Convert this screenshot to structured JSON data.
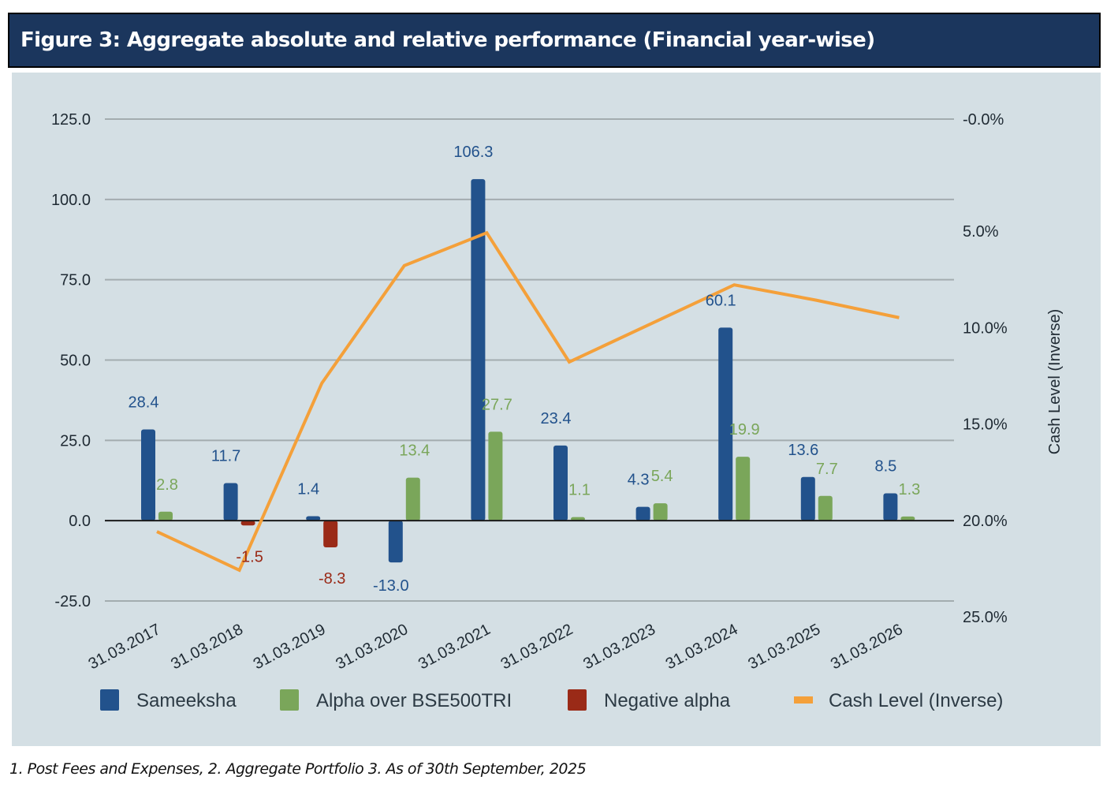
{
  "header": {
    "title": "Figure 3:  Aggregate absolute and relative performance (Financial year-wise)"
  },
  "footnote": "1. Post Fees and Expenses, 2. Aggregate Portfolio  3. As of 30th September, 2025",
  "colors": {
    "title_bg": "#1b365d",
    "panel_bg": "#d4dfe4",
    "sameeksha": "#22528c",
    "alpha": "#7aa65a",
    "negative_alpha": "#9a2a17",
    "cash": "#f4a03a",
    "grid": "#a3acaf",
    "zero_line": "#1a1a1a"
  },
  "chart_data": {
    "type": "bar",
    "title": "Figure 3:  Aggregate absolute and relative performance (Financial year-wise)",
    "categories": [
      "31.03.2017",
      "31.03.2018",
      "31.03.2019",
      "31.03.2020",
      "31.03.2021",
      "31.03.2022",
      "31.03.2023",
      "31.03.2024",
      "31.03.2025",
      "31.03.2026"
    ],
    "series": [
      {
        "name": "Sameeksha",
        "type": "bar",
        "axis": "left",
        "values": [
          28.4,
          11.7,
          1.4,
          -13.0,
          106.3,
          23.4,
          4.3,
          60.1,
          13.6,
          8.5
        ],
        "labels": [
          "28.4",
          "11.7",
          "1.4",
          "-13.0",
          "106.3",
          "23.4",
          "4.3",
          "60.1",
          "13.6",
          "8.5"
        ]
      },
      {
        "name": "Alpha over BSE500TRI",
        "type": "bar",
        "axis": "left",
        "values": [
          2.8,
          null,
          null,
          13.4,
          27.7,
          1.1,
          5.4,
          19.9,
          7.7,
          1.3
        ],
        "labels": [
          "2.8",
          null,
          null,
          "13.4",
          "27.7",
          "1.1",
          "5.4",
          "19.9",
          "7.7",
          "1.3"
        ]
      },
      {
        "name": "Negative alpha",
        "type": "bar",
        "axis": "left",
        "values": [
          null,
          -1.5,
          -8.3,
          null,
          null,
          null,
          null,
          null,
          null,
          null
        ],
        "labels": [
          null,
          "-1.5",
          "-8.3",
          null,
          null,
          null,
          null,
          null,
          null,
          null
        ]
      },
      {
        "name": "Cash Level (Inverse)",
        "type": "line",
        "axis": "right",
        "values": [
          21.4,
          23.4,
          13.7,
          7.6,
          5.9,
          12.6,
          10.6,
          8.6,
          9.4,
          10.3
        ]
      }
    ],
    "left_axis": {
      "ylim": [
        -25,
        125
      ],
      "ticks": [
        125,
        100,
        75,
        50,
        25,
        0,
        -25
      ],
      "tick_labels": [
        "125.0",
        "100.0",
        "75.0",
        "50.0",
        "25.0",
        "0.0",
        "-25.0"
      ],
      "label": ""
    },
    "right_axis": {
      "ylim": [
        0,
        25
      ],
      "inverted": true,
      "ticks": [
        0,
        5,
        10,
        15,
        20,
        25
      ],
      "tick_labels": [
        "-0.0%",
        "5.0%",
        "10.0%",
        "15.0%",
        "20.0%",
        "25.0%"
      ],
      "label": "Cash Level (Inverse)"
    },
    "xlabel": "",
    "grid": true,
    "legend": {
      "position": "bottom",
      "entries": [
        "Sameeksha",
        "Alpha over BSE500TRI",
        "Negative alpha",
        "Cash Level (Inverse)"
      ]
    }
  }
}
